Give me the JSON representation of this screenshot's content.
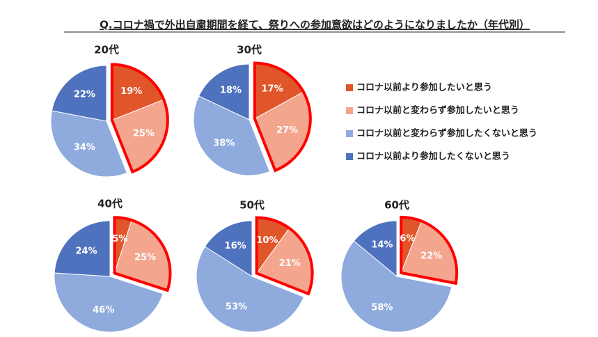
{
  "title": "Q.コロナ禍で外出自粛期間を経て、祭りへの参加意欲はどのようになりましたか（年代別）",
  "chart_data": [
    {
      "type": "pie",
      "title": "20代",
      "categories": [
        "コロナ以前より参加したいと思う",
        "コロナ以前と変わらず参加したいと思う",
        "コロナ以前と変わらず参加したくないと思う",
        "コロナ以前より参加したくないと思う"
      ],
      "colors": [
        "#e0562a",
        "#f4a58e",
        "#8faadc",
        "#4f72be"
      ],
      "values": [
        19,
        25,
        34,
        22
      ],
      "value_labels": [
        "19%",
        "25%",
        "34%",
        "22%"
      ]
    },
    {
      "type": "pie",
      "title": "30代",
      "categories": [
        "コロナ以前より参加したいと思う",
        "コロナ以前と変わらず参加したいと思う",
        "コロナ以前と変わらず参加したくないと思う",
        "コロナ以前より参加したくないと思う"
      ],
      "colors": [
        "#e0562a",
        "#f4a58e",
        "#8faadc",
        "#4f72be"
      ],
      "values": [
        17,
        27,
        38,
        18
      ],
      "value_labels": [
        "17%",
        "27%",
        "38%",
        "18%"
      ]
    },
    {
      "type": "pie",
      "title": "40代",
      "categories": [
        "コロナ以前より参加したいと思う",
        "コロナ以前と変わらず参加したいと思う",
        "コロナ以前と変わらず参加したくないと思う",
        "コロナ以前より参加したくないと思う"
      ],
      "colors": [
        "#e0562a",
        "#f4a58e",
        "#8faadc",
        "#4f72be"
      ],
      "values": [
        5,
        25,
        46,
        24
      ],
      "value_labels": [
        "5%",
        "25%",
        "46%",
        "24%"
      ]
    },
    {
      "type": "pie",
      "title": "50代",
      "categories": [
        "コロナ以前より参加したいと思う",
        "コロナ以前と変わらず参加したいと思う",
        "コロナ以前と変わらず参加したくないと思う",
        "コロナ以前より参加したくないと思う"
      ],
      "colors": [
        "#e0562a",
        "#f4a58e",
        "#8faadc",
        "#4f72be"
      ],
      "values": [
        10,
        21,
        53,
        16
      ],
      "value_labels": [
        "10%",
        "21%",
        "53%",
        "16%"
      ]
    },
    {
      "type": "pie",
      "title": "60代",
      "categories": [
        "コロナ以前より参加したいと思う",
        "コロナ以前と変わらず参加したいと思う",
        "コロナ以前と変わらず参加したくないと思う",
        "コロナ以前より参加したくないと思う"
      ],
      "colors": [
        "#e0562a",
        "#f4a58e",
        "#8faadc",
        "#4f72be"
      ],
      "values": [
        6,
        22,
        58,
        14
      ],
      "value_labels": [
        "6%",
        "22%",
        "58%",
        "14%"
      ]
    }
  ]
}
